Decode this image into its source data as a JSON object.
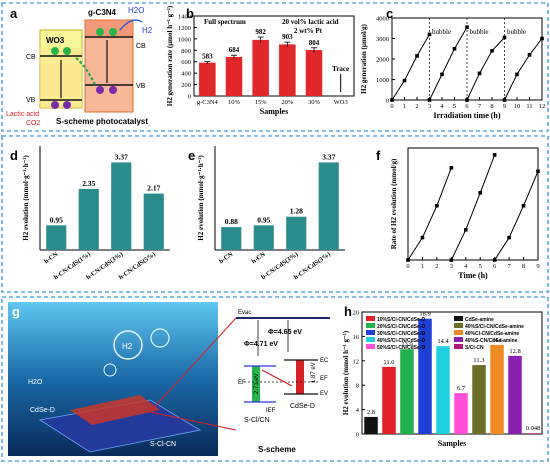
{
  "colors": {
    "frame": "#5aa9e6",
    "red_bar": "#e0282a",
    "teal_bar": "#2a8c8c",
    "black": "#000000",
    "blue_bg": "#1a6aa8",
    "arrow_red": "#d61f26",
    "green": "#2aa64a",
    "orange": "#f08030"
  },
  "panels": {
    "a": {
      "letter": "a",
      "wo3": "WO3",
      "gc3n4": "g-C3N4",
      "h2o": "H2O",
      "h2": "H2",
      "cb_left": "CB",
      "vb_left": "VB",
      "cb_right": "CB",
      "vb_right": "VB",
      "lactic": "Lactic acid",
      "co2": "CO2",
      "caption": "S-scheme photocatalyst"
    },
    "g": {
      "letter": "g",
      "h2o": "H2O",
      "h2": "H2",
      "cdse": "CdSe-D",
      "cn": "S-Cl-CN",
      "evac": "Evac",
      "phi1": "Φ=4.65 eV",
      "phi2": "Φ=4.71 eV",
      "ef1": "EF",
      "ef2": "EF",
      "ec": "EC",
      "ev": "EV",
      "gap1": "2.71 eV",
      "gap2": "1.87 eV",
      "iep": "IEF",
      "scl": "S-Cl/CN",
      "cdse2": "CdSe-D",
      "caption": "S-scheme"
    }
  },
  "chart_data": [
    {
      "id": "b",
      "type": "bar",
      "letter": "b",
      "title": "",
      "annotations": [
        "Full spectrum",
        "20 vol% lactic acid",
        "2 wt% Pt"
      ],
      "xlabel": "Samples",
      "ylabel": "H2 generation rate (μmol h⁻¹ g⁻¹)",
      "categories": [
        "g-C3N4",
        "10%",
        "15%",
        "20%",
        "30%",
        "WO3"
      ],
      "values": [
        583,
        684,
        982,
        903,
        804,
        0
      ],
      "value_labels": [
        "583",
        "684",
        "982",
        "903",
        "804",
        "Trace"
      ],
      "errors": [
        20,
        30,
        50,
        40,
        40,
        0
      ],
      "ylim": [
        0,
        1400
      ],
      "yticks": [
        0,
        200,
        400,
        600,
        800,
        1000,
        1200,
        1400
      ],
      "color": "#e0282a"
    },
    {
      "id": "c",
      "type": "line",
      "letter": "c",
      "xlabel": "Irradiation time (h)",
      "ylabel": "H2 generation (μmol/g)",
      "xlim": [
        0,
        12
      ],
      "ylim": [
        0,
        4000
      ],
      "xticks": [
        0,
        1,
        2,
        3,
        4,
        5,
        6,
        7,
        8,
        9,
        10,
        11,
        12
      ],
      "yticks": [
        0,
        1000,
        2000,
        3000,
        4000
      ],
      "bubble_label": "bubble",
      "bubble_positions": [
        3,
        6,
        9
      ],
      "segments": [
        [
          [
            0,
            0
          ],
          [
            1,
            950
          ],
          [
            2,
            2150
          ],
          [
            3,
            3200
          ]
        ],
        [
          [
            3,
            0
          ],
          [
            4,
            1250
          ],
          [
            5,
            2500
          ],
          [
            6,
            3550
          ]
        ],
        [
          [
            6,
            0
          ],
          [
            7,
            1300
          ],
          [
            8,
            2400
          ],
          [
            9,
            3050
          ]
        ],
        [
          [
            9,
            0
          ],
          [
            10,
            1250
          ],
          [
            11,
            2200
          ],
          [
            12,
            3000
          ]
        ]
      ]
    },
    {
      "id": "d",
      "type": "bar",
      "letter": "d",
      "xlabel": "",
      "ylabel": "H2 evolution (mmol·g⁻¹·h⁻¹)",
      "categories": [
        "h-CN",
        "h-CN/CdS(1%)",
        "h-CN/CdS(3%)",
        "h-CN/CdS(5%)"
      ],
      "values": [
        0.95,
        2.35,
        3.37,
        2.17
      ],
      "value_labels": [
        "0.95",
        "2.35",
        "3.37",
        "2.17"
      ],
      "ylim": [
        0,
        4
      ],
      "color": "#2a8c8c"
    },
    {
      "id": "e",
      "type": "bar",
      "letter": "e",
      "xlabel": "",
      "ylabel": "H2 evolution (mmol·g⁻¹·h⁻¹)",
      "categories": [
        "b-CN",
        "h-CN",
        "b-CN/CdS(3%)",
        "h-CN/CdS(3%)"
      ],
      "values": [
        0.88,
        0.95,
        1.28,
        3.37
      ],
      "value_labels": [
        "0.88",
        "0.95",
        "1.28",
        "3.37"
      ],
      "ylim": [
        0,
        4
      ],
      "color": "#2a8c8c"
    },
    {
      "id": "f",
      "type": "line",
      "letter": "f",
      "xlabel": "Time (h)",
      "ylabel": "Rate of H2 evolution (mmol/g)",
      "xlim": [
        0,
        9
      ],
      "ylim": [
        0,
        13
      ],
      "xticks": [
        0,
        1,
        2,
        3,
        4,
        5,
        6,
        7,
        8,
        9
      ],
      "segments": [
        [
          [
            0,
            0
          ],
          [
            1,
            2.6
          ],
          [
            2,
            6.3
          ],
          [
            3,
            10.7
          ]
        ],
        [
          [
            3,
            0
          ],
          [
            4,
            3.5
          ],
          [
            5,
            7.8
          ],
          [
            6,
            12.2
          ]
        ],
        [
          [
            6,
            0
          ],
          [
            7,
            2.6
          ],
          [
            8,
            6.3
          ],
          [
            9,
            10.3
          ]
        ]
      ]
    },
    {
      "id": "h",
      "type": "bar",
      "letter": "h",
      "xlabel": "Samples",
      "ylabel": "H2 evolution (mmol h⁻¹ g⁻¹)",
      "ylim": [
        0,
        20
      ],
      "yticks": [
        0,
        4,
        8,
        12,
        16,
        20
      ],
      "series": [
        {
          "name": "10%S/Cl-CN/CdSe-D",
          "value": 11.0,
          "label": "11.0",
          "color": "#e01f26"
        },
        {
          "name": "20%S/Cl-CN/CdSe-D",
          "value": 13.9,
          "label": "13.9",
          "color": "#22b14c"
        },
        {
          "name": "30%S/Cl-CN/CdSe-D",
          "value": 18.9,
          "label": "18.9",
          "color": "#1f3fd6"
        },
        {
          "name": "40%S/Cl-CN/CdSe-D",
          "value": 14.4,
          "label": "14.4",
          "color": "#20d0e0"
        },
        {
          "name": "50%S/Cl-CN/CdSe-D",
          "value": 6.7,
          "label": "6.7",
          "color": "#ff4fd8"
        },
        {
          "name": "CdSe-amine",
          "value": 2.8,
          "label": "2.8",
          "color": "#111111"
        },
        {
          "name": "40%S/Cl-CN/CdSe-amine",
          "value": 11.3,
          "label": "11.3",
          "color": "#6d6d2a"
        },
        {
          "name": "40%Cl-CN/CdSe-amine",
          "value": 14.6,
          "label": "14.6",
          "color": "#f08a24"
        },
        {
          "name": "40%S-CN/CdSe-amine",
          "value": 12.8,
          "label": "12.8",
          "color": "#8a20b0"
        },
        {
          "name": "S/Cl-CN",
          "value": 0.048,
          "label": "0.048",
          "color": "#b2187a"
        }
      ],
      "bar_order": [
        5,
        0,
        1,
        2,
        3,
        4,
        6,
        7,
        8,
        9
      ]
    }
  ]
}
